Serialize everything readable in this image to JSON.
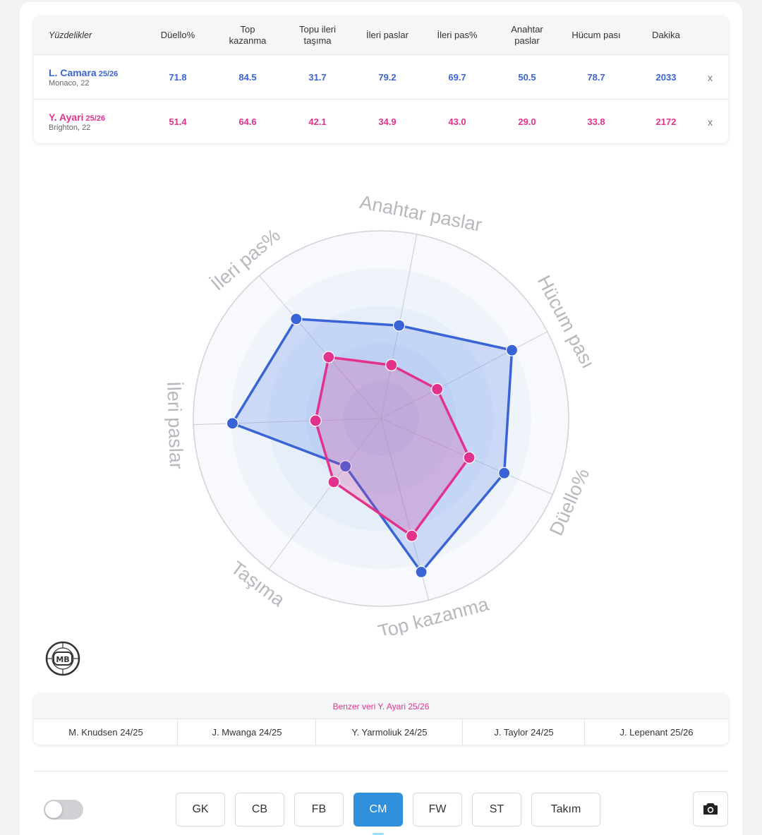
{
  "table": {
    "header_label": "Yüzdelikler",
    "columns": [
      "Düello%",
      "Top\nkazanma",
      "Topu ileri\ntaşıma",
      "İleri paslar",
      "İleri pas%",
      "Anahtar\npaslar",
      "Hücum pası",
      "Dakika"
    ],
    "remove_label": "x",
    "players": [
      {
        "name": "L. Camara",
        "season": "25/26",
        "sub": "Monaco, 22",
        "values": [
          "71.8",
          "84.5",
          "31.7",
          "79.2",
          "69.7",
          "50.5",
          "78.7",
          "2033"
        ]
      },
      {
        "name": "Y. Ayari",
        "season": "25/26",
        "sub": "Brighton, 22",
        "values": [
          "51.4",
          "64.6",
          "42.1",
          "34.9",
          "43.0",
          "29.0",
          "33.8",
          "2172"
        ]
      }
    ]
  },
  "colors": {
    "player1": "#3a64d6",
    "player2": "#e2338c",
    "active_button": "#2f8fdb"
  },
  "chart_data": {
    "type": "radar",
    "axes": [
      "Anahtar paslar",
      "Hücum pası",
      "Düello%",
      "Top kazanma",
      "Taşıma",
      "İleri paslar",
      "İleri pas%"
    ],
    "range": [
      0,
      100
    ],
    "series": [
      {
        "name": "L. Camara 25/26",
        "color": "#3a64d6",
        "values": [
          50.5,
          78.7,
          71.8,
          84.5,
          31.7,
          79.2,
          69.7
        ]
      },
      {
        "name": "Y. Ayari 25/26",
        "color": "#e2338c",
        "values": [
          29.0,
          33.8,
          51.4,
          64.6,
          42.1,
          34.9,
          43.0
        ]
      }
    ]
  },
  "logo_text": "MB",
  "similar": {
    "title": "Benzer veri Y. Ayari 25/26",
    "players": [
      "M. Knudsen 24/25",
      "J. Mwanga 24/25",
      "Y. Yarmoliuk 24/25",
      "J. Taylor 24/25",
      "J. Lepenant 25/26"
    ]
  },
  "positions": {
    "buttons": [
      "GK",
      "CB",
      "FB",
      "CM",
      "FW",
      "ST",
      "Takım"
    ],
    "active": "CM"
  },
  "toggle": {
    "on": false
  },
  "icons": {
    "camera": "camera-icon"
  }
}
